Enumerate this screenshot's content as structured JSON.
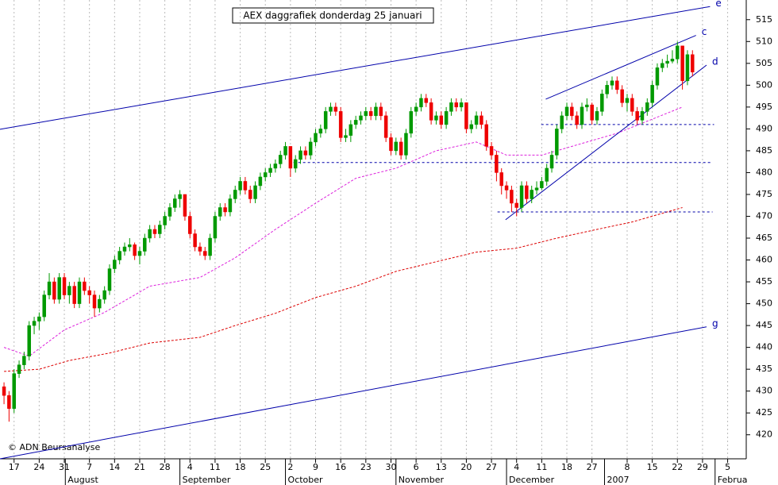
{
  "chart_data": {
    "type": "candlestick",
    "title": "AEX daggrafiek donderdag 25 januari",
    "credit": "© ADN Beursanalyse",
    "up_color": "#009900",
    "down_color": "#ee0000",
    "ylim": [
      414.5,
      519.5
    ],
    "yticks": [
      420,
      425,
      430,
      435,
      440,
      445,
      450,
      455,
      460,
      465,
      470,
      475,
      480,
      485,
      490,
      495,
      500,
      505,
      510,
      515
    ],
    "xlim": [
      -0.8,
      147.7
    ],
    "xticks": [
      {
        "value": 2,
        "label": "17"
      },
      {
        "value": 7,
        "label": "24"
      },
      {
        "value": 12,
        "label": "31"
      },
      {
        "value": 17,
        "label": "7"
      },
      {
        "value": 22,
        "label": "14"
      },
      {
        "value": 27,
        "label": "21"
      },
      {
        "value": 32,
        "label": "28"
      },
      {
        "value": 37,
        "label": "4"
      },
      {
        "value": 42,
        "label": "11"
      },
      {
        "value": 47,
        "label": "18"
      },
      {
        "value": 52,
        "label": "25"
      },
      {
        "value": 57,
        "label": "2"
      },
      {
        "value": 62,
        "label": "9"
      },
      {
        "value": 67,
        "label": "16"
      },
      {
        "value": 72,
        "label": "23"
      },
      {
        "value": 77,
        "label": "30"
      },
      {
        "value": 82,
        "label": "6"
      },
      {
        "value": 87,
        "label": "13"
      },
      {
        "value": 92,
        "label": "20"
      },
      {
        "value": 97,
        "label": "27"
      },
      {
        "value": 102,
        "label": "4"
      },
      {
        "value": 107,
        "label": "11"
      },
      {
        "value": 112,
        "label": "18"
      },
      {
        "value": 117,
        "label": "27"
      },
      {
        "value": 124,
        "label": "8"
      },
      {
        "value": 129,
        "label": "15"
      },
      {
        "value": 134,
        "label": "22"
      },
      {
        "value": 139,
        "label": "29"
      },
      {
        "value": 144,
        "label": "5"
      }
    ],
    "months": [
      {
        "value": 12.2,
        "label": "August"
      },
      {
        "value": 35,
        "label": "September"
      },
      {
        "value": 56,
        "label": "October"
      },
      {
        "value": 78,
        "label": "November"
      },
      {
        "value": 100,
        "label": "December"
      },
      {
        "value": 119.5,
        "label": "2007"
      },
      {
        "value": 141.5,
        "label": "Februa"
      }
    ],
    "candles": [
      [
        431,
        432,
        427,
        429
      ],
      [
        429,
        430,
        423,
        426
      ],
      [
        426,
        435,
        425,
        434
      ],
      [
        434,
        437,
        433,
        436
      ],
      [
        436,
        439,
        435,
        438
      ],
      [
        438,
        446,
        437,
        445
      ],
      [
        445,
        447,
        443,
        446
      ],
      [
        446,
        448,
        444,
        447
      ],
      [
        447,
        453,
        446,
        452
      ],
      [
        452,
        457,
        451,
        455
      ],
      [
        455,
        456,
        450,
        451
      ],
      [
        451,
        457,
        450,
        456
      ],
      [
        456,
        457,
        451,
        452
      ],
      [
        452,
        455,
        450,
        454
      ],
      [
        454,
        455,
        449,
        450
      ],
      [
        450,
        456,
        449,
        455
      ],
      [
        455,
        456,
        452,
        453
      ],
      [
        453,
        454,
        450,
        452
      ],
      [
        452,
        453,
        447,
        449
      ],
      [
        449,
        452,
        448,
        451
      ],
      [
        451,
        454,
        450,
        453
      ],
      [
        453,
        459,
        452,
        458
      ],
      [
        458,
        461,
        457,
        460
      ],
      [
        460,
        463,
        459,
        462
      ],
      [
        462,
        464,
        461,
        463
      ],
      [
        463,
        465,
        462,
        463.5
      ],
      [
        463.5,
        464,
        460,
        461
      ],
      [
        461,
        463,
        459,
        462
      ],
      [
        462,
        466,
        461,
        465
      ],
      [
        465,
        468,
        464,
        467
      ],
      [
        467,
        468,
        465,
        466
      ],
      [
        466,
        469,
        465,
        468
      ],
      [
        468,
        471,
        467,
        470
      ],
      [
        470,
        473,
        469,
        472
      ],
      [
        472,
        475,
        471,
        474
      ],
      [
        474,
        476,
        472,
        475
      ],
      [
        475,
        475,
        469,
        470
      ],
      [
        470,
        471,
        465,
        466
      ],
      [
        466,
        467,
        462,
        463
      ],
      [
        463,
        464,
        461,
        462
      ],
      [
        462,
        463,
        460,
        461
      ],
      [
        461,
        466,
        460,
        465
      ],
      [
        465,
        471,
        464,
        470
      ],
      [
        470,
        473,
        469,
        472
      ],
      [
        472,
        473,
        470,
        471
      ],
      [
        471,
        475,
        470,
        474
      ],
      [
        474,
        477,
        473,
        476
      ],
      [
        476,
        479,
        475,
        478
      ],
      [
        478,
        479,
        475,
        476
      ],
      [
        476,
        477,
        473,
        474
      ],
      [
        474,
        478,
        473,
        477
      ],
      [
        477,
        480,
        476,
        479
      ],
      [
        479,
        481,
        478,
        480
      ],
      [
        480,
        482,
        479,
        481
      ],
      [
        481,
        483,
        480,
        482
      ],
      [
        482,
        485,
        481,
        484
      ],
      [
        484,
        487,
        483,
        486
      ],
      [
        486,
        486,
        479,
        481
      ],
      [
        481,
        484,
        480,
        483
      ],
      [
        483,
        486,
        482,
        485
      ],
      [
        485,
        486,
        483,
        484
      ],
      [
        484,
        488,
        483,
        487
      ],
      [
        487,
        490,
        486,
        489
      ],
      [
        489,
        491,
        488,
        490
      ],
      [
        490,
        495,
        489,
        494
      ],
      [
        494,
        496,
        493,
        495
      ],
      [
        495,
        496,
        493,
        494
      ],
      [
        494,
        495,
        487,
        488
      ],
      [
        488,
        490,
        487,
        488.5
      ],
      [
        488.5,
        492,
        487,
        491
      ],
      [
        491,
        493,
        490,
        492
      ],
      [
        492,
        494,
        491,
        493
      ],
      [
        493,
        495,
        492,
        494
      ],
      [
        494,
        495,
        492,
        493
      ],
      [
        493,
        496,
        492,
        495
      ],
      [
        495,
        496,
        492,
        493
      ],
      [
        493,
        494,
        487,
        488
      ],
      [
        488,
        489,
        484,
        485
      ],
      [
        485,
        488,
        484,
        487
      ],
      [
        487,
        488,
        483,
        484
      ],
      [
        484,
        490,
        483,
        489
      ],
      [
        489,
        495,
        488,
        494
      ],
      [
        494,
        496,
        493,
        495
      ],
      [
        495,
        498,
        494,
        497
      ],
      [
        497,
        498,
        495,
        496
      ],
      [
        496,
        497,
        491,
        492
      ],
      [
        492,
        494,
        491,
        493
      ],
      [
        493,
        494,
        490,
        491
      ],
      [
        491,
        495,
        490,
        494
      ],
      [
        494,
        497,
        493,
        496
      ],
      [
        496,
        497,
        494,
        495
      ],
      [
        495,
        497,
        494,
        496
      ],
      [
        496,
        496,
        489,
        490
      ],
      [
        490,
        492,
        489,
        491
      ],
      [
        491,
        494,
        490,
        493
      ],
      [
        493,
        494,
        490,
        491
      ],
      [
        491,
        492,
        485,
        486
      ],
      [
        486,
        487,
        483,
        484
      ],
      [
        484,
        485,
        478,
        480
      ],
      [
        480,
        481,
        475,
        477
      ],
      [
        477,
        478,
        474,
        476
      ],
      [
        476,
        477,
        471,
        473
      ],
      [
        473,
        474,
        470,
        472
      ],
      [
        472,
        478,
        471,
        477
      ],
      [
        477,
        478,
        473,
        474
      ],
      [
        474,
        477,
        473,
        476
      ],
      [
        476,
        478,
        475,
        476.5
      ],
      [
        476.5,
        479,
        476,
        478
      ],
      [
        478,
        482,
        477,
        481
      ],
      [
        481,
        485,
        480,
        484
      ],
      [
        484,
        491,
        483,
        490
      ],
      [
        490,
        494,
        489,
        493
      ],
      [
        493,
        496,
        492,
        495
      ],
      [
        495,
        496,
        492,
        493
      ],
      [
        493,
        494,
        490,
        491
      ],
      [
        491,
        496,
        490,
        495
      ],
      [
        495,
        497,
        494,
        495.5
      ],
      [
        495.5,
        496,
        491,
        492
      ],
      [
        492,
        495,
        491,
        494
      ],
      [
        494,
        499,
        493,
        498
      ],
      [
        498,
        501,
        497,
        500
      ],
      [
        500,
        502,
        499,
        501
      ],
      [
        501,
        502,
        498,
        499
      ],
      [
        499,
        500,
        495,
        496
      ],
      [
        496,
        498,
        494,
        497
      ],
      [
        497,
        498,
        493,
        494
      ],
      [
        494,
        495,
        491,
        492
      ],
      [
        492,
        495,
        491,
        494
      ],
      [
        494,
        497,
        493,
        496
      ],
      [
        496,
        501,
        495,
        500
      ],
      [
        500,
        505,
        499,
        504
      ],
      [
        504,
        506,
        503,
        505
      ],
      [
        505,
        507,
        504,
        505.5
      ],
      [
        505.5,
        508,
        505,
        506
      ],
      [
        506,
        510,
        505,
        509
      ],
      [
        509,
        509,
        499,
        501
      ],
      [
        501,
        508,
        500,
        507
      ],
      [
        507,
        508,
        502,
        503
      ]
    ],
    "averages": [
      {
        "color": "#dd22dd",
        "x": [
          0,
          5,
          12,
          20,
          29,
          39,
          46,
          54,
          62,
          70,
          78,
          86,
          94,
          100,
          107,
          113,
          122,
          135
        ],
        "values": [
          440,
          438,
          444,
          448,
          454,
          456,
          460.5,
          467,
          473,
          478.7,
          481,
          485,
          487,
          484,
          484,
          486,
          489,
          495
        ]
      },
      {
        "color": "#dd0000",
        "x": [
          0,
          7,
          13,
          21,
          29,
          39,
          46,
          54,
          62,
          70,
          78,
          86,
          94,
          102,
          110,
          118,
          125,
          135
        ],
        "values": [
          434.5,
          435,
          437,
          438.7,
          441,
          442.3,
          445,
          447.8,
          451.4,
          454,
          457.4,
          459.6,
          461.8,
          462.7,
          465,
          467,
          468.7,
          472
        ]
      }
    ],
    "trendlines": [
      {
        "label": "e",
        "x": [
          -0.8,
          140.5
        ],
        "values": [
          489.9,
          518
        ]
      },
      {
        "label": "c",
        "x": [
          107.8,
          137.7
        ],
        "values": [
          496.8,
          511.4
        ]
      },
      {
        "label": "d",
        "x": [
          99.8,
          139.8
        ],
        "values": [
          469.2,
          504.6
        ]
      },
      {
        "label": "g",
        "x": [
          -0.8,
          139.8
        ],
        "values": [
          414.5,
          444.7
        ]
      }
    ],
    "levels": [
      {
        "x": [
          106.9,
          141.3
        ],
        "value": 491
      },
      {
        "x": [
          57.6,
          140.7
        ],
        "value": 482.3
      },
      {
        "x": [
          98.2,
          141
        ],
        "value": 471
      }
    ]
  }
}
